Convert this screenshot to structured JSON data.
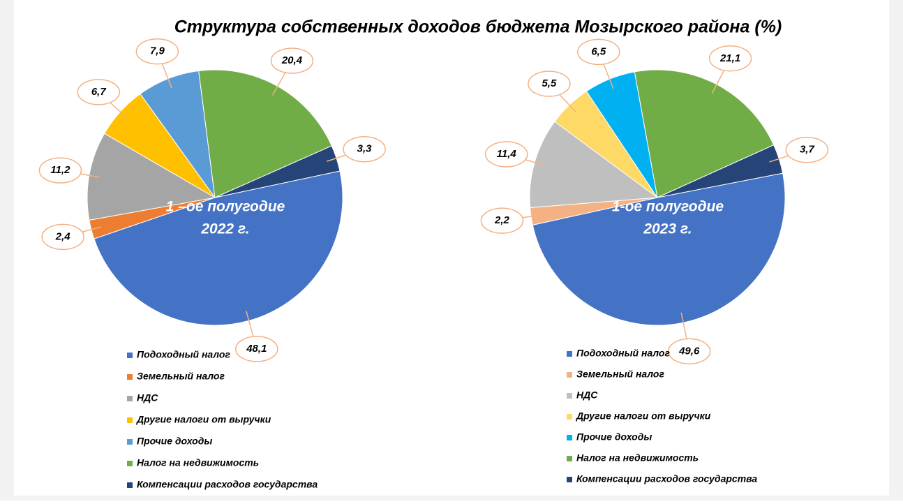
{
  "title": "Структура собственных доходов бюджета Мозырского района  (%)",
  "chart_data": [
    {
      "type": "pie",
      "center_label": [
        "1 –ое полугодие",
        "2022 г."
      ],
      "categories": [
        "Подоходный налог",
        "Земельный налог",
        "НДС",
        "Другие налоги от выручки",
        "Прочие доходы",
        "Налог на недвижимость",
        "Компенсации расходов государства"
      ],
      "values": [
        48.1,
        2.4,
        11.2,
        6.7,
        7.9,
        20.4,
        3.3
      ],
      "value_labels": [
        "48,1",
        "2,4",
        "11,2",
        "6,7",
        "7,9",
        "20,4",
        "3,3"
      ],
      "colors": [
        "#4472c4",
        "#ed7d31",
        "#a5a5a5",
        "#ffc000",
        "#5b9bd5",
        "#70ad47",
        "#264478"
      ]
    },
    {
      "type": "pie",
      "center_label": [
        "1-ое полугодие",
        "2023 г."
      ],
      "categories": [
        "Подоходный налог",
        "Земельный налог",
        "НДС",
        "Другие налоги от выручки",
        "Прочие доходы",
        "Налог на недвижимость",
        "Компенсации расходов государства"
      ],
      "values": [
        49.6,
        2.2,
        11.4,
        5.5,
        6.5,
        21.1,
        3.7
      ],
      "value_labels": [
        "49,6",
        "2,2",
        "11,4",
        "5,5",
        "6,5",
        "21,1",
        "3,7"
      ],
      "colors": [
        "#4472c4",
        "#f4b183",
        "#bfbfbf",
        "#ffd966",
        "#00b0f0",
        "#70ad47",
        "#264478"
      ]
    }
  ]
}
